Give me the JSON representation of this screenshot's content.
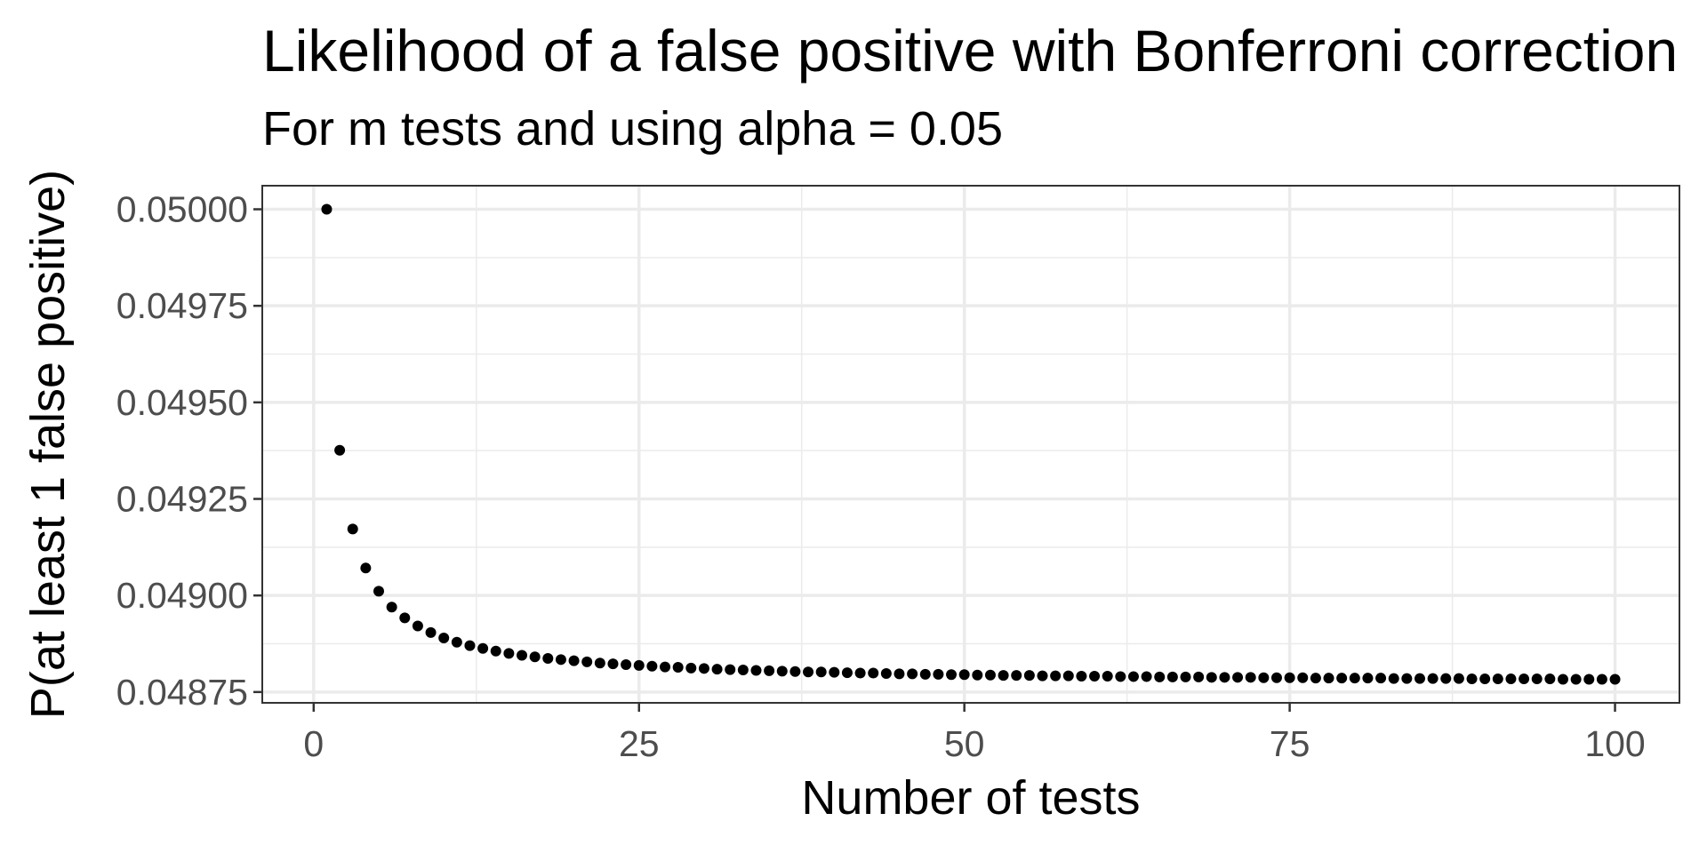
{
  "chart_data": {
    "type": "scatter",
    "title": "Likelihood of a false positive with Bonferroni correction",
    "subtitle": "For m tests and using alpha = 0.05",
    "x_label": "Number of tests",
    "y_label": "P(at least 1 false positive)",
    "x": [
      1,
      2,
      3,
      4,
      5,
      6,
      7,
      8,
      9,
      10,
      11,
      12,
      13,
      14,
      15,
      16,
      17,
      18,
      19,
      20,
      21,
      22,
      23,
      24,
      25,
      26,
      27,
      28,
      29,
      30,
      31,
      32,
      33,
      34,
      35,
      36,
      37,
      38,
      39,
      40,
      41,
      42,
      43,
      44,
      45,
      46,
      47,
      48,
      49,
      50,
      51,
      52,
      53,
      54,
      55,
      56,
      57,
      58,
      59,
      60,
      61,
      62,
      63,
      64,
      65,
      66,
      67,
      68,
      69,
      70,
      71,
      72,
      73,
      74,
      75,
      76,
      77,
      78,
      79,
      80,
      81,
      82,
      83,
      84,
      85,
      86,
      87,
      88,
      89,
      90,
      91,
      92,
      93,
      94,
      95,
      96,
      97,
      98,
      99,
      100
    ],
    "values": [
      0.05,
      0.049376,
      0.049172,
      0.049071,
      0.049011,
      0.04897,
      0.048942,
      0.048921,
      0.048904,
      0.04889,
      0.048879,
      0.04887,
      0.048863,
      0.048856,
      0.04885,
      0.048845,
      0.048841,
      0.048837,
      0.048834,
      0.048831,
      0.048828,
      0.048825,
      0.048823,
      0.048821,
      0.048819,
      0.048817,
      0.048815,
      0.048814,
      0.048812,
      0.048811,
      0.048809,
      0.048808,
      0.048807,
      0.048806,
      0.048805,
      0.048804,
      0.048803,
      0.048802,
      0.048802,
      0.048801,
      0.0488,
      0.048799,
      0.048799,
      0.048798,
      0.048797,
      0.048797,
      0.048796,
      0.048796,
      0.048795,
      0.048795,
      0.048794,
      0.048794,
      0.048793,
      0.048793,
      0.048793,
      0.048792,
      0.048792,
      0.048792,
      0.048791,
      0.048791,
      0.048791,
      0.04879,
      0.04879,
      0.04879,
      0.048789,
      0.048789,
      0.048789,
      0.048789,
      0.048788,
      0.048788,
      0.048788,
      0.048788,
      0.048787,
      0.048787,
      0.048787,
      0.048787,
      0.048786,
      0.048786,
      0.048786,
      0.048786,
      0.048786,
      0.048786,
      0.048785,
      0.048785,
      0.048785,
      0.048785,
      0.048785,
      0.048785,
      0.048784,
      0.048784,
      0.048784,
      0.048784,
      0.048784,
      0.048784,
      0.048784,
      0.048783,
      0.048783,
      0.048783,
      0.048783,
      0.048783
    ],
    "color": "#000000",
    "xlim": [
      -3.95,
      104.95
    ],
    "ylim": [
      0.048722,
      0.050061
    ],
    "xticks": [
      0,
      25,
      50,
      75,
      100
    ],
    "yticks": [
      {
        "value": 0.04875,
        "label": "0.04875"
      },
      {
        "value": 0.049,
        "label": "0.04900"
      },
      {
        "value": 0.04925,
        "label": "0.04925"
      },
      {
        "value": 0.0495,
        "label": "0.04950"
      },
      {
        "value": 0.04975,
        "label": "0.04975"
      },
      {
        "value": 0.05,
        "label": "0.05000"
      }
    ],
    "grid": true,
    "minor_grid": true
  }
}
